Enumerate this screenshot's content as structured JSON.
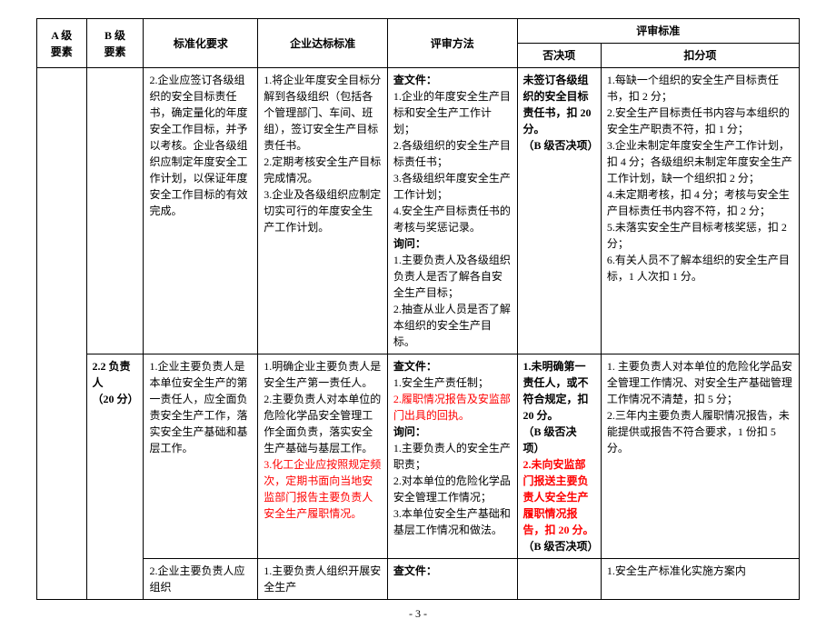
{
  "headers": {
    "a": "A 级\n要素",
    "b": "B 级\n要素",
    "std": "标准化要求",
    "ent": "企业达标标准",
    "eval": "评审方法",
    "review": "评审标准",
    "veto": "否决项",
    "deduct": "扣分项"
  },
  "row1": {
    "std": "2.企业应签订各级组织的安全目标责任书，确定量化的年度安全工作目标，并予以考核。企业各级组织应制定年度安全工作计划，以保证年度安全工作目标的有效完成。",
    "ent": "1.将企业年度安全目标分解到各级组织（包括各个管理部门、车间、班组），签订安全生产目标责任书。\n2.定期考核安全生产目标完成情况。\n3.企业及各级组织应制定切实可行的年度安全生产工作计划。",
    "eval_title": "查文件：",
    "eval_l1": "1.企业的年度安全生产目标和安全生产工作计划；",
    "eval_l2": "2.各级组织的安全生产目标责任书；",
    "eval_l3": "3.各级组织年度安全生产工作计划；",
    "eval_l4": "4.安全生产目标责任书的考核与奖惩记录。",
    "eval_ask": "询问：",
    "eval_l5": "1.主要负责人及各级组织负责人是否了解各自安全生产目标；",
    "eval_l6": "2.抽查从业人员是否了解本组织的安全生产目标。",
    "veto": "未签订各级组织的安全目标责任书，扣 20 分。\n（B 级否决项）",
    "deduct_l1": "1.每缺一个组织的安全生产目标责任书，扣 2 分；",
    "deduct_l2": "2.安全生产目标责任书内容与本组织的安全生产职责不符，扣 1 分；",
    "deduct_l3": "3.企业未制定年度安全生产工作计划，扣 4 分；各级组织未制定年度安全生产工作计划，缺一个组织扣 2 分；",
    "deduct_l4": "4.未定期考核，扣 4 分；考核与安全生产目标责任书内容不符，扣 2 分；",
    "deduct_l5": "5.未落实安全生产目标考核奖惩，扣 2 分；",
    "deduct_l6": "6.有关人员不了解本组织的安全生产目标，1 人次扣 1 分。"
  },
  "row2": {
    "b": "2.2 负责人\n（20 分）",
    "std": "1.企业主要负责人是本单位安全生产的第一责任人，应全面负责安全生产工作，落实安全生产基础和基层工作。",
    "ent_l1": "1.明确企业主要负责人是安全生产第一责任人。",
    "ent_l2": "2.主要负责人对本单位的危险化学品安全管理工作全面负责，落实安全生产基础与基层工作。",
    "ent_l3": "3.化工企业应按照规定频次，定期书面向当地安监部门报告主要负责人安全生产履职情况。",
    "eval_title": "查文件：",
    "eval_l1": "1.安全生产责任制；",
    "eval_l2": "2.履职情况报告及安监部门出具的回执。",
    "eval_ask": "询问：",
    "eval_l3": "1.主要负责人的安全生产职责；",
    "eval_l4": "2.对本单位的危险化学品安全管理工作情况；",
    "eval_l5": "3.本单位安全生产基础和基层工作情况和做法。",
    "veto_l1": "1.未明确第一责任人，或不符合规定，扣 20 分。",
    "veto_l1b": "（B 级否决项）",
    "veto_l2": "2.未向安监部门报送主要负责人安全生产履职情况报告，扣 20 分。",
    "veto_l2b": "（B 级否决项）",
    "deduct_l1": "1. 主要负责人对本单位的危险化学品安全管理工作情况、对安全生产基础管理工作情况不清楚，扣 5 分；",
    "deduct_l2": "2.三年内主要负责人履职情况报告，未能提供或报告不符合要求，1 份扣 5 分。"
  },
  "row3": {
    "std": "2.企业主要负责人应组织",
    "ent": "1.主要负责人组织开展安全生产",
    "eval": "查文件：",
    "deduct": "1.安全生产标准化实施方案内"
  },
  "page": "- 3 -"
}
